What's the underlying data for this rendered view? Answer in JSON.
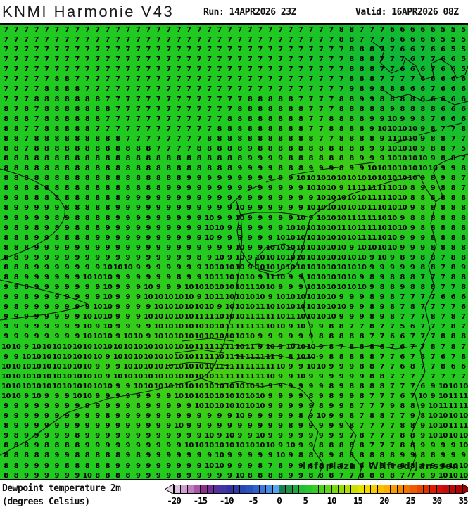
{
  "header": {
    "title": "KNMI Harmonie V43",
    "run_label": "Run: 14APR2026 23Z",
    "valid_label": "Valid: 16APR2026 08Z"
  },
  "map": {
    "watermark": "Infoplaza / Wilfred Janssen",
    "base_color": "#21ca21",
    "coastline_color": "#000000"
  },
  "legend": {
    "label_line1": "Dewpoint temperature 2m",
    "label_line2": "(degrees Celsius)",
    "ticks": [
      -20,
      -15,
      -10,
      -5,
      0,
      5,
      10,
      15,
      20,
      25,
      30,
      35
    ],
    "left_arrow_color": "#e6d1e6",
    "right_arrow_color": "#9c0202",
    "colors": [
      "#dcc0dc",
      "#cfa0cf",
      "#bf7fbf",
      "#a855a8",
      "#8f2e8f",
      "#722e95",
      "#562f9c",
      "#3f35a5",
      "#32319f",
      "#2e3ca9",
      "#2b47b3",
      "#2853be",
      "#3063ca",
      "#3b77d7",
      "#488de3",
      "#56a5f0",
      "#1d7c50",
      "#1f9246",
      "#21a93b",
      "#24bf31",
      "#27c62b",
      "#37cc24",
      "#4bd11d",
      "#61d517",
      "#7ad811",
      "#94da0b",
      "#afdd05",
      "#cadf02",
      "#e3e200",
      "#efd900",
      "#f6cd00",
      "#fac000",
      "#fbb000",
      "#f99c00",
      "#f68700",
      "#f37100",
      "#ef5b00",
      "#ea4500",
      "#e43000",
      "#dc1d00",
      "#d21208",
      "#c70c0c",
      "#bb0808",
      "#ae0404"
    ]
  },
  "chart_data": {
    "type": "heatmap",
    "title": "KNMI Harmonie V43 dewpoint temperature 2m",
    "unit": "degrees Celsius",
    "colorbar_range": [
      -20,
      35
    ],
    "colorbar_step": 1.25,
    "value_range_shown": [
      5,
      11
    ],
    "grid_cols": 46,
    "grid_rows_count": 46,
    "grid_rows": [
      "7 7 7 7 7 7 7 7 7 7 7 7 7 7 7 7 7 7 7 7 7 7 7 7 7 7 7 7 7 7 7 7 7 8 8 7 7 7 6 6 6 6 6 5 5 5",
      "7 7 7 7 7 7 7 7 7 7 7 7 7 7 7 7 7 7 7 7 7 7 7 7 7 7 7 7 7 7 7 7 7 8 8 7 7 7 6 6 6 6 6 5 5 5",
      "7 7 7 7 7 7 7 7 7 7 7 7 7 7 7 7 7 7 7 7 7 7 7 7 7 7 7 7 7 7 7 7 7 7 8 8 8 7 7 6 6 7 6 6 5 5",
      "7 7 7 7 7 7 7 7 7 7 7 7 7 7 7 7 7 7 7 7 7 7 7 7 7 7 7 7 7 7 7 7 7 7 8 8 8 7 7 7 6 7 7 6 6 5",
      "7 7 7 7 7 7 7 7 7 7 7 7 7 7 7 7 7 7 7 7 7 7 7 7 7 7 7 7 7 7 7 7 7 7 8 8 8 7 7 6 6 6 7 6 6 5",
      "7 7 7 7 7 8 8 7 7 7 7 7 7 7 7 7 7 7 7 7 7 7 7 7 7 7 7 7 7 7 7 7 7 7 8 8 8 7 7 7 7 6 6 6 6 6",
      "7 7 7 7 8 8 8 8 7 7 7 7 7 7 7 7 7 7 7 7 7 7 7 7 7 7 7 7 7 7 7 7 7 7 9 8 9 8 8 8 6 6 7 6 6 6",
      "7 7 7 8 8 8 8 8 8 8 7 7 7 7 7 7 7 7 7 7 7 7 7 7 8 8 8 8 8 7 7 7 7 8 8 9 9 8 8 8 8 6 6 6 6 6",
      "8 7 8 7 8 8 8 8 8 8 8 7 7 7 7 7 7 7 7 7 7 7 7 8 8 8 8 8 8 8 7 7 7 8 8 8 8 8 9 8 8 8 8 6 6 6",
      "8 8 8 7 8 8 8 8 8 8 7 7 7 7 7 7 7 7 7 7 7 7 8 8 8 8 8 8 8 8 7 7 8 8 8 8 9 9 10 9 9 8 7 6 6 6",
      "8 8 7 7 8 8 8 8 8 7 7 7 7 7 7 7 7 7 7 7 7 8 8 8 8 8 8 8 8 8 7 7 8 8 8 8 9 10 10 10 10 9 8 7 7 8",
      "8 8 7 8 8 8 8 8 8 8 8 8 7 7 7 7 7 7 7 7 8 8 8 8 8 8 8 8 8 8 8 7 7 8 8 8 8 9 11 10 10 9 8 8 7 7",
      "8 8 7 8 8 8 8 8 8 8 8 8 8 8 8 7 7 7 7 8 8 8 8 8 9 8 8 8 8 8 8 8 8 8 8 8 9 9 10 10 10 9 8 8 7 5",
      "8 8 8 8 8 8 8 8 8 8 8 8 8 8 8 8 8 8 8 8 8 8 8 8 9 9 9 9 8 8 8 8 8 8 8 9 9 9 10 10 10 10 9 8 8 7",
      "8 8 8 8 8 8 8 8 8 8 8 8 8 8 8 8 8 8 8 8 8 8 8 9 9 9 9 8 8 8 9 9 9 8 9 9 10 10 10 10 10 10 10 9 9 8",
      "8 8 8 8 8 8 8 8 8 8 8 8 8 8 8 8 8 8 9 9 9 9 9 9 9 9 9 9 9 10 10 10 10 10 10 10 10 10 10 10 10 9 8 9 8 7",
      "8 9 8 8 8 8 8 8 8 8 8 8 8 8 8 8 9 9 9 9 9 9 9 9 9 9 9 9 9 9 10 10 10 9 11 11 11 11 10 10 8 9 9 8 8 7",
      "9 9 8 8 8 8 8 8 8 8 8 8 9 9 9 9 9 9 9 9 9 9 9 9 9 9 9 9 9 9 9 10 10 10 10 10 11 11 10 10 8 8 8 8 8 8",
      "8 9 9 9 9 9 8 8 8 8 8 9 9 9 9 9 9 9 9 9 9 9 9 10 9 9 9 9 9 9 10 10 10 10 10 10 11 10 10 10 9 8 8 8 8 8",
      "9 9 9 9 9 8 9 8 8 8 8 9 9 9 9 9 9 9 9 9 10 9 9 10 9 9 9 9 9 10 9 10 10 10 11 11 11 10 10 9 8 8 8 8 8 8",
      "9 8 9 8 9 8 9 8 8 8 9 9 9 9 9 9 9 9 9 9 10 10 9 9 9 9 9 9 10 10 10 10 10 11 10 11 11 10 10 10 9 8 8 8 8 8",
      "8 8 8 9 9 8 8 8 8 9 9 9 9 9 9 9 9 9 9 9 10 9 9 9 9 9 9 10 10 10 10 10 10 10 10 11 11 10 10 9 9 9 8 8 8 8",
      "8 8 8 9 9 9 9 9 9 9 9 9 9 9 9 9 9 9 9 9 9 9 9 10 9 9 10 10 10 10 10 10 10 10 9 10 10 10 10 9 9 9 8 8 8 8",
      "8 8 9 9 9 9 9 9 9 9 9 9 9 9 9 9 9 9 9 8 9 10 9 10 9 10 10 10 10 10 10 10 10 10 10 10 9 10 9 8 9 8 8 7 8 8",
      "8 8 8 9 9 9 9 9 9 9 10 10 10 9 9 9 9 9 9 9 10 10 10 10 9 10 10 10 10 10 10 10 10 10 10 10 9 9 9 9 9 8 8 7 8 9",
      "8 8 9 9 9 9 9 9 10 10 10 9 9 9 9 9 9 8 9 9 10 11 10 10 10 9 11 10 9 9 10 10 10 10 10 9 8 9 8 8 8 7 7 7 8 8",
      "9 9 8 9 9 9 9 9 9 9 10 9 9 9 10 9 9 9 10 10 10 10 10 10 11 10 10 9 9 9 10 10 10 10 10 10 9 8 8 9 8 8 8 7 7 8",
      "9 9 8 9 9 9 9 9 9 9 10 9 9 9 10 10 10 10 10 9 10 11 10 10 10 10 9 10 10 10 10 10 10 9 9 9 8 9 8 7 7 7 7 6 6 6",
      "9 8 9 9 9 9 9 9 9 10 10 9 9 9 9 10 10 10 10 10 10 9 10 10 10 11 10 10 10 10 10 10 10 10 9 9 8 9 8 7 8 7 7 7 7 6",
      "9 9 9 9 9 9 9 9 10 10 10 9 9 9 10 10 10 10 10 11 11 10 10 10 11 11 11 10 11 10 10 10 10 9 9 9 8 9 8 7 7 7 8 7 8 7",
      "9 9 9 9 9 9 9 9 10 9 10 9 9 9 9 10 10 10 10 10 10 10 11 11 11 11 10 10 9 10 9 9 8 8 7 7 8 7 7 5 6 7 7 7 8 7",
      "9 9 9 9 9 9 9 9 10 10 10 9 10 10 9 10 10 10 10 10 10 10 10 10 10 9 9 9 9 9 9 8 8 8 8 8 7 7 6 6 7 7 7 8 8 8",
      "10 10 9 10 10 10 10 10 10 10 10 10 10 10 10 10 10 10 10 11 11 11 11 10 11 9 10 9 10 10 10 9 8 7 8 8 8 6 7 6 7 7 8 7 8 7",
      "9 9 10 10 10 10 10 10 10 10 9 10 10 10 10 10 10 10 10 11 11 10 11 11 11 11 11 9 8 10 10 9 8 8 8 8 8 7 7 6 7 8 7 6 7 8",
      "10 10 10 10 10 10 10 10 10 9 9 9 10 10 10 10 10 10 10 10 10 11 11 11 11 11 11 10 9 9 10 10 9 9 9 8 8 7 7 6 8 7 7 8 6 6",
      "10 10 10 10 10 10 10 10 10 10 9 10 10 10 10 10 10 10 10 10 10 11 11 11 11 11 10 9 9 10 9 9 9 9 9 9 8 8 7 7 7 7 7 7 7 7",
      "10 10 10 10 10 10 10 10 10 10 10 9 9 10 10 10 10 10 10 10 10 10 10 10 10 11 9 9 9 9 9 9 8 9 8 8 8 8 7 7 7 6 9 10 10 10",
      "10 10 9 10 9 9 9 10 10 9 9 9 9 9 9 9 9 10 10 10 10 10 10 10 10 10 9 9 9 9 8 9 8 9 9 8 7 7 7 6 7 10 9 10 11 11",
      "9 9 9 9 9 9 9 9 9 9 9 9 9 8 9 9 9 9 9 10 10 10 10 10 10 10 9 9 9 9 9 8 9 9 8 7 7 7 9 8 8 9 10 11 11 11",
      "9 9 9 9 9 9 9 9 9 9 8 9 9 9 9 9 9 9 9 9 9 9 9 10 9 9 9 9 9 8 9 10 9 9 8 7 8 8 7 7 9 8 10 10 10 10",
      "8 9 9 9 9 9 9 9 9 9 9 9 9 9 9 9 9 10 9 9 9 9 9 9 9 9 9 9 8 9 9 9 9 9 8 7 7 7 7 8 8 9 10 10 11 11",
      "9 8 9 9 9 9 9 8 9 9 9 9 9 9 9 9 9 9 9 9 10 9 10 9 9 10 9 9 9 9 9 9 9 9 7 8 7 7 7 8 8 9 10 10 10 10",
      "8 8 8 9 8 8 8 8 9 9 9 9 9 9 9 9 9 9 10 10 10 10 10 10 10 10 10 9 10 9 9 8 8 8 8 8 7 7 7 8 8 9 9 9 9 10",
      "8 8 8 8 8 9 9 8 8 8 8 8 9 8 9 9 9 9 9 9 9 10 9 9 9 9 9 10 9 8 8 8 9 8 8 8 8 8 8 9 9 8 8 9 9 9",
      "8 8 9 9 9 9 8 8 8 8 8 9 9 9 9 9 9 9 9 9 10 10 9 9 9 8 7 8 9 9 8 8 8 8 8 8 7 8 8 8 8 9 9 8 10 10",
      "8 8 9 9 9 9 9 9 10 8 8 8 8 9 9 9 9 8 9 9 9 9 9 10 8 8 8 8 9 9 8 8 8 7 7 8 8 8 8 7 7 8 9 10 10 10"
    ]
  }
}
